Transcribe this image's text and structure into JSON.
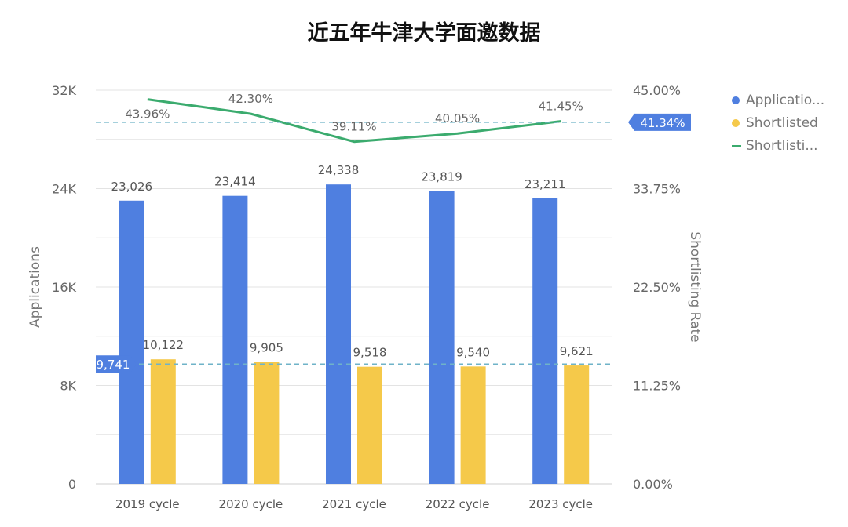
{
  "title": "近五年牛津大学面邀数据",
  "chart_data": {
    "type": "bar",
    "categories": [
      "2019 cycle",
      "2020 cycle",
      "2021 cycle",
      "2022 cycle",
      "2023 cycle"
    ],
    "series": [
      {
        "name": "Applicatio...",
        "type": "bar",
        "axis": "left",
        "color": "#4f7fe0",
        "values": [
          23026,
          23414,
          24338,
          23819,
          23211
        ],
        "labels": [
          "23,026",
          "23,414",
          "24,338",
          "23,819",
          "23,211"
        ]
      },
      {
        "name": "Shortlisted",
        "type": "bar",
        "axis": "left",
        "color": "#f5c94a",
        "values": [
          10122,
          9905,
          9518,
          9540,
          9621
        ],
        "labels": [
          "10,122",
          "9,905",
          "9,518",
          "9,540",
          "9,621"
        ]
      },
      {
        "name": "Shortlisti...",
        "type": "line",
        "axis": "right",
        "color": "#3bab6e",
        "values": [
          43.96,
          42.3,
          39.11,
          40.05,
          41.45
        ],
        "labels": [
          "43.96%",
          "42.30%",
          "39.11%",
          "40.05%",
          "41.45%"
        ]
      }
    ],
    "ylabel": "Applications",
    "ylabel_right": "Shortlisting Rate",
    "ylim": [
      0,
      32000
    ],
    "ylim_right": [
      0,
      45
    ],
    "yticks": [
      "0",
      "8K",
      "16K",
      "24K",
      "32K"
    ],
    "yticks_right": [
      "0.00%",
      "11.25%",
      "22.50%",
      "33.75%",
      "45.00%"
    ],
    "reference_lines": [
      {
        "axis": "left",
        "value": 9741,
        "label": "9,741"
      },
      {
        "axis": "right",
        "value": 41.34,
        "label": "41.34%"
      }
    ],
    "grid": true,
    "legend_position": "right"
  }
}
